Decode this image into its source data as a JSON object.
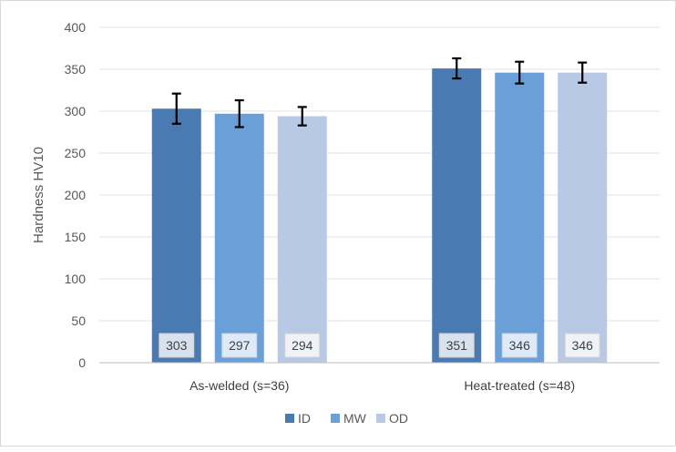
{
  "chart_data": {
    "type": "bar",
    "title": "",
    "xlabel": "",
    "ylabel": "Hardness HV10",
    "ylim": [
      0,
      400
    ],
    "yticks": [
      0,
      50,
      100,
      150,
      200,
      250,
      300,
      350,
      400
    ],
    "ytick_labels": [
      "0",
      "50",
      "100",
      "150",
      "200",
      "250",
      "300",
      "350",
      "400"
    ],
    "grid": true,
    "legend_position": "bottom",
    "categories": [
      "As-welded (s=36)",
      "Heat-treated (s=48)"
    ],
    "series": [
      {
        "name": "ID",
        "color": "#4a7ab2",
        "values": [
          303,
          351
        ],
        "errors": [
          18,
          12
        ],
        "labels": [
          "303",
          "351"
        ]
      },
      {
        "name": "MW",
        "color": "#6a9fd8",
        "values": [
          297,
          346
        ],
        "errors": [
          16,
          13
        ],
        "labels": [
          "297",
          "346"
        ]
      },
      {
        "name": "OD",
        "color": "#b8c9e5",
        "values": [
          294,
          346
        ],
        "errors": [
          11,
          12
        ],
        "labels": [
          "294",
          "346"
        ]
      }
    ]
  }
}
